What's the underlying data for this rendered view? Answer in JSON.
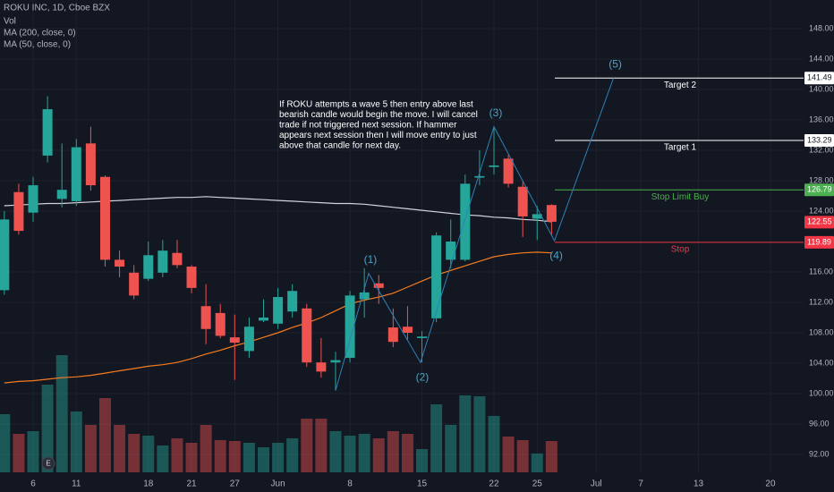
{
  "chart_data": {
    "type": "candlestick",
    "title": "ROKU INC, 1D, Cboe BZX",
    "legend": [
      "Vol",
      "MA (200, close, 0)",
      "MA (50, close, 0)"
    ],
    "open": [
      113.6,
      126.5,
      123.8,
      131.3,
      125.6,
      125.3,
      132.9,
      128.5,
      117.6,
      115.9,
      115.1,
      115.9,
      118.5,
      116.7,
      111.5,
      110.6,
      107.4,
      105.6,
      109.6,
      109.2,
      110.8,
      111.2,
      104.1,
      104.1,
      104.7,
      112.4,
      114.5,
      108.7,
      108.8,
      107.3,
      109.9,
      117.6,
      117.6,
      128.4,
      129.8,
      130.9,
      127.2,
      123.0,
      124.8
    ],
    "high": [
      124.0,
      127.6,
      128.5,
      139.1,
      132.9,
      133.5,
      135.1,
      128.7,
      118.8,
      116.9,
      120.0,
      120.2,
      120.2,
      116.9,
      114.4,
      111.8,
      110.4,
      110.0,
      112.4,
      113.9,
      114.4,
      111.8,
      107.3,
      105.5,
      113.5,
      116.5,
      115.6,
      111.2,
      111.5,
      108.2,
      121.2,
      122.9,
      128.8,
      132.0,
      134.9,
      131.4,
      127.9,
      124.7,
      124.9
    ],
    "low": [
      113.0,
      120.9,
      122.6,
      130.4,
      124.5,
      124.7,
      126.7,
      116.7,
      115.3,
      112.4,
      114.8,
      115.3,
      116.5,
      113.2,
      106.5,
      107.3,
      101.8,
      104.7,
      109.4,
      108.5,
      110.0,
      103.5,
      102.1,
      100.4,
      104.1,
      110.0,
      111.8,
      106.1,
      107.1,
      104.1,
      109.4,
      116.5,
      117.4,
      127.4,
      128.8,
      127.1,
      120.6,
      120.2,
      120.9
    ],
    "close": [
      122.9,
      121.4,
      127.4,
      137.4,
      126.8,
      132.4,
      127.4,
      117.6,
      116.7,
      112.9,
      118.2,
      118.8,
      116.9,
      113.9,
      108.5,
      107.6,
      106.7,
      108.8,
      110.0,
      112.7,
      113.5,
      104.1,
      102.9,
      104.4,
      112.9,
      113.3,
      113.9,
      106.8,
      108.0,
      107.5,
      120.8,
      120.0,
      127.6,
      128.6,
      130.0,
      127.6,
      123.3,
      123.6,
      122.6
    ],
    "volume": [
      6.5,
      4.3,
      4.6,
      9.8,
      13.1,
      6.8,
      5.3,
      8.3,
      5.3,
      4.3,
      4.1,
      3.0,
      3.8,
      3.3,
      5.3,
      3.6,
      3.5,
      3.3,
      2.8,
      3.3,
      3.8,
      6.0,
      6.0,
      4.6,
      4.1,
      4.3,
      3.8,
      4.6,
      4.3,
      2.6,
      7.6,
      5.3,
      8.6,
      8.5,
      6.3,
      4.0,
      3.6,
      2.1,
      3.5
    ],
    "up_color": "#26a69a",
    "down_color": "#ef5350",
    "ma200": {
      "color": "#d1d4dc",
      "values": [
        124.7,
        124.8,
        124.9,
        125.0,
        125.0,
        125.1,
        125.2,
        125.3,
        125.4,
        125.5,
        125.6,
        125.7,
        125.8,
        125.8,
        125.9,
        125.8,
        125.7,
        125.6,
        125.5,
        125.4,
        125.3,
        125.2,
        125.1,
        125.0,
        125.0,
        124.9,
        124.7,
        124.5,
        124.3,
        124.1,
        123.9,
        123.7,
        123.5,
        123.4,
        123.2,
        123.1,
        122.9,
        122.8,
        122.6
      ]
    },
    "ma50": {
      "color": "#f57c20",
      "values": [
        101.4,
        101.6,
        101.7,
        101.9,
        102.1,
        102.2,
        102.4,
        102.7,
        103.0,
        103.3,
        103.6,
        103.8,
        104.1,
        104.6,
        105.2,
        105.7,
        106.3,
        106.8,
        107.4,
        108.0,
        108.7,
        109.3,
        110.0,
        110.9,
        111.8,
        112.3,
        112.7,
        113.2,
        114.0,
        114.8,
        115.6,
        116.2,
        116.8,
        117.4,
        118.0,
        118.3,
        118.5,
        118.6,
        118.5
      ]
    },
    "xlim": [
      -0.3,
      55.5
    ],
    "xticks": [
      {
        "value": 2,
        "label": "6"
      },
      {
        "value": 5,
        "label": "11"
      },
      {
        "value": 10,
        "label": "18"
      },
      {
        "value": 13,
        "label": "21"
      },
      {
        "value": 16,
        "label": "27"
      },
      {
        "value": 19,
        "label": "Jun"
      },
      {
        "value": 24,
        "label": "8"
      },
      {
        "value": 29,
        "label": "15"
      },
      {
        "value": 34,
        "label": "22"
      },
      {
        "value": 37,
        "label": "25"
      },
      {
        "value": 41.1,
        "label": "Jul"
      },
      {
        "value": 44.2,
        "label": "7"
      },
      {
        "value": 48.2,
        "label": "13"
      },
      {
        "value": 53.2,
        "label": "20"
      }
    ],
    "ylim": [
      89.65,
      151.76
    ],
    "yticks": [
      {
        "value": 148,
        "label": "148.00"
      },
      {
        "value": 144,
        "label": "144.00"
      },
      {
        "value": 140,
        "label": "140.00"
      },
      {
        "value": 136,
        "label": "136.00"
      },
      {
        "value": 132,
        "label": "132.00"
      },
      {
        "value": 128,
        "label": "128.00"
      },
      {
        "value": 124,
        "label": "124.00"
      },
      {
        "value": 116,
        "label": "116.00"
      },
      {
        "value": 112,
        "label": "112.00"
      },
      {
        "value": 108,
        "label": "108.00"
      },
      {
        "value": 104,
        "label": "104.00"
      },
      {
        "value": 100,
        "label": "100.00"
      },
      {
        "value": 96,
        "label": "96.00"
      },
      {
        "value": 92,
        "label": "92.00"
      }
    ],
    "vlim": [
      0,
      52.8
    ],
    "levels": [
      {
        "name": "Target 2",
        "value": 141.49,
        "label": "141.49",
        "color": "#ffffff"
      },
      {
        "name": "Target 1",
        "value": 133.29,
        "label": "133.29",
        "color": "#ffffff"
      },
      {
        "name": "Stop Limit Buy",
        "value": 126.79,
        "label": "126.79",
        "color": "#4caf50"
      },
      {
        "name": "Stop",
        "value": 119.89,
        "label": "119.89",
        "color": "#f23645"
      }
    ],
    "last_price": {
      "value": 122.55,
      "label": "122.55",
      "color": "#f23645"
    },
    "wave": {
      "color": "#2f7fb5",
      "x": [
        23,
        25.3,
        28.9,
        34,
        38.2,
        42.3
      ],
      "y": [
        100.4,
        115.8,
        104.1,
        135.1,
        120.1,
        141.5
      ],
      "labels": [
        null,
        "(1)",
        "(2)",
        "(3)",
        "(4)",
        "(5)"
      ]
    },
    "note": [
      "If ROKU attempts a wave 5 then entry above last",
      "bearish candle would begin the move. I will cancel",
      "trade if not triggered next session. If hammer",
      "appears next session then I will move entry to just",
      "above that candle for next day."
    ],
    "earnings_marker": "E"
  }
}
